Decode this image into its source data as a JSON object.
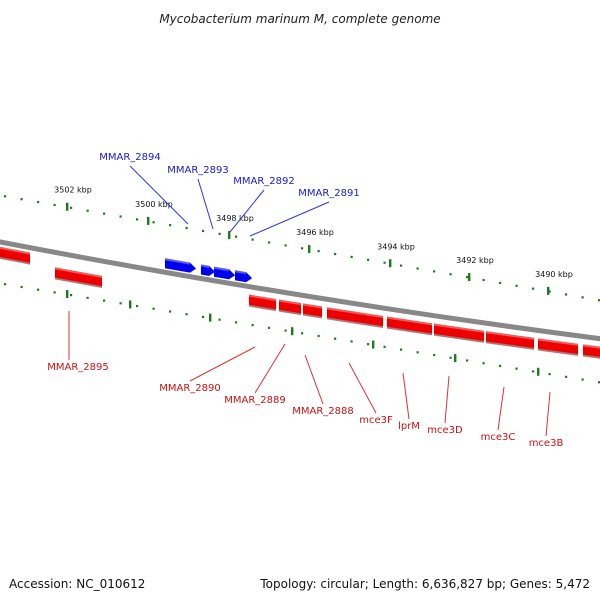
{
  "title": "Mycobacterium marinum M, complete genome",
  "footer": {
    "accession": "Accession: NC_010612",
    "summary": "Topology: circular; Length: 6,636,827 bp; Genes: 5,472"
  },
  "colors": {
    "plus_strand": "#0000ee",
    "minus_strand": "#ee0000",
    "backbone": "#888888",
    "ticks": "#1f7a1f",
    "label_line_plus": "#3333dd",
    "label_line_minus": "#dd3333"
  },
  "ticks": [
    {
      "label": "3502 kbp"
    },
    {
      "label": "3500 kbp"
    },
    {
      "label": "3498 kbp"
    },
    {
      "label": "3496 kbp"
    },
    {
      "label": "3494 kbp"
    },
    {
      "label": "3492 kbp"
    },
    {
      "label": "3490 kbp"
    }
  ],
  "genes_plus": [
    {
      "label": "MMAR_2894"
    },
    {
      "label": "MMAR_2893"
    },
    {
      "label": "MMAR_2892"
    },
    {
      "label": "MMAR_2891"
    }
  ],
  "genes_minus": [
    {
      "label": "MMAR_2895"
    },
    {
      "label": "MMAR_2890"
    },
    {
      "label": "MMAR_2889"
    },
    {
      "label": "MMAR_2888"
    },
    {
      "label": "mce3F"
    },
    {
      "label": "lprM"
    },
    {
      "label": "mce3D"
    },
    {
      "label": "mce3C"
    },
    {
      "label": "mce3B"
    }
  ]
}
